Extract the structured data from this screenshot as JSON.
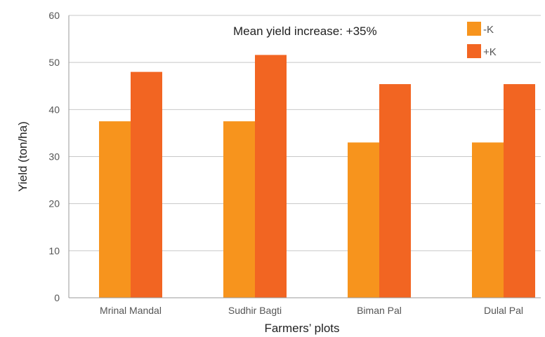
{
  "chart_data": {
    "type": "bar",
    "categories": [
      "Mrinal Mandal",
      "Sudhir Bagti",
      "Biman Pal",
      "Dulal Pal"
    ],
    "series": [
      {
        "name": "-K",
        "color": "#f7941d",
        "values": [
          37.5,
          37.5,
          33.0,
          33.0
        ]
      },
      {
        "name": "+K",
        "color": "#f26522",
        "values": [
          48.0,
          51.6,
          45.4,
          45.4
        ]
      }
    ],
    "xlabel": "Farmers’ plots",
    "ylabel": "Yield (ton/ha)",
    "ylim": [
      0,
      60
    ],
    "yticks": [
      0,
      10,
      20,
      30,
      40,
      50,
      60
    ],
    "annotation": "Mean yield increase: +35%",
    "grid": "horizontal",
    "legend_position": "top-right",
    "gridline_color": "#c8c8c8",
    "axis_color": "#999999"
  }
}
